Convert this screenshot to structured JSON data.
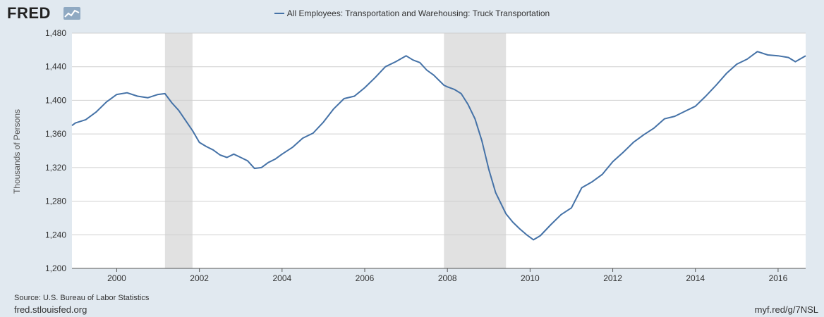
{
  "header": {
    "logo_text": "FRED",
    "logo_icon": "line-chart-icon"
  },
  "chart_data": {
    "type": "line",
    "title": "All Employees: Transportation and Warehousing: Truck Transportation",
    "ylabel": "Thousands of Persons",
    "xlabel": "",
    "ylim": [
      1200,
      1480
    ],
    "xlim": [
      1998.917,
      2016.667
    ],
    "yticks": [
      1200,
      1240,
      1280,
      1320,
      1360,
      1400,
      1440,
      1480
    ],
    "ytick_labels": [
      "1,200",
      "1,240",
      "1,280",
      "1,320",
      "1,360",
      "1,400",
      "1,440",
      "1,480"
    ],
    "xticks": [
      2000,
      2002,
      2004,
      2006,
      2008,
      2010,
      2012,
      2014,
      2016
    ],
    "xtick_labels": [
      "2000",
      "2002",
      "2004",
      "2006",
      "2008",
      "2010",
      "2012",
      "2014",
      "2016"
    ],
    "grid": true,
    "line_color": "#4572a7",
    "recession_color": "#e1e1e1",
    "recessions": [
      [
        2001.167,
        2001.833
      ],
      [
        2007.917,
        2009.417
      ]
    ],
    "series": [
      {
        "name": "All Employees: Transportation and Warehousing: Truck Transportation",
        "points": [
          [
            1998.917,
            1370
          ],
          [
            1999.0,
            1373
          ],
          [
            1999.25,
            1377
          ],
          [
            1999.5,
            1386
          ],
          [
            1999.75,
            1398
          ],
          [
            2000.0,
            1407
          ],
          [
            2000.25,
            1409
          ],
          [
            2000.5,
            1405
          ],
          [
            2000.75,
            1403
          ],
          [
            2001.0,
            1407
          ],
          [
            2001.167,
            1408
          ],
          [
            2001.333,
            1397
          ],
          [
            2001.5,
            1388
          ],
          [
            2001.667,
            1376
          ],
          [
            2001.833,
            1364
          ],
          [
            2002.0,
            1350
          ],
          [
            2002.167,
            1345
          ],
          [
            2002.333,
            1341
          ],
          [
            2002.5,
            1335
          ],
          [
            2002.667,
            1332
          ],
          [
            2002.833,
            1336
          ],
          [
            2003.0,
            1332
          ],
          [
            2003.167,
            1328
          ],
          [
            2003.333,
            1319
          ],
          [
            2003.5,
            1320
          ],
          [
            2003.667,
            1326
          ],
          [
            2003.833,
            1330
          ],
          [
            2004.0,
            1336
          ],
          [
            2004.25,
            1344
          ],
          [
            2004.5,
            1355
          ],
          [
            2004.75,
            1361
          ],
          [
            2005.0,
            1374
          ],
          [
            2005.25,
            1390
          ],
          [
            2005.5,
            1402
          ],
          [
            2005.75,
            1405
          ],
          [
            2006.0,
            1415
          ],
          [
            2006.25,
            1427
          ],
          [
            2006.5,
            1440
          ],
          [
            2006.75,
            1446
          ],
          [
            2007.0,
            1453
          ],
          [
            2007.167,
            1448
          ],
          [
            2007.333,
            1445
          ],
          [
            2007.5,
            1436
          ],
          [
            2007.667,
            1430
          ],
          [
            2007.917,
            1418
          ],
          [
            2008.0,
            1416
          ],
          [
            2008.167,
            1413
          ],
          [
            2008.333,
            1408
          ],
          [
            2008.5,
            1395
          ],
          [
            2008.667,
            1378
          ],
          [
            2008.833,
            1352
          ],
          [
            2009.0,
            1318
          ],
          [
            2009.167,
            1290
          ],
          [
            2009.417,
            1265
          ],
          [
            2009.583,
            1255
          ],
          [
            2009.75,
            1247
          ],
          [
            2009.917,
            1240
          ],
          [
            2010.083,
            1234
          ],
          [
            2010.25,
            1239
          ],
          [
            2010.5,
            1252
          ],
          [
            2010.75,
            1264
          ],
          [
            2011.0,
            1272
          ],
          [
            2011.25,
            1296
          ],
          [
            2011.5,
            1303
          ],
          [
            2011.75,
            1312
          ],
          [
            2012.0,
            1327
          ],
          [
            2012.25,
            1338
          ],
          [
            2012.5,
            1350
          ],
          [
            2012.75,
            1359
          ],
          [
            2013.0,
            1367
          ],
          [
            2013.25,
            1378
          ],
          [
            2013.5,
            1381
          ],
          [
            2013.75,
            1387
          ],
          [
            2014.0,
            1393
          ],
          [
            2014.25,
            1405
          ],
          [
            2014.5,
            1418
          ],
          [
            2014.75,
            1432
          ],
          [
            2015.0,
            1443
          ],
          [
            2015.25,
            1449
          ],
          [
            2015.5,
            1458
          ],
          [
            2015.75,
            1454
          ],
          [
            2016.0,
            1453
          ],
          [
            2016.25,
            1451
          ],
          [
            2016.417,
            1446
          ],
          [
            2016.667,
            1453
          ]
        ]
      }
    ]
  },
  "footer": {
    "source": "Source: U.S. Bureau of Labor Statistics",
    "site": "fred.stlouisfed.org",
    "short_link": "myf.red/g/7NSL"
  }
}
